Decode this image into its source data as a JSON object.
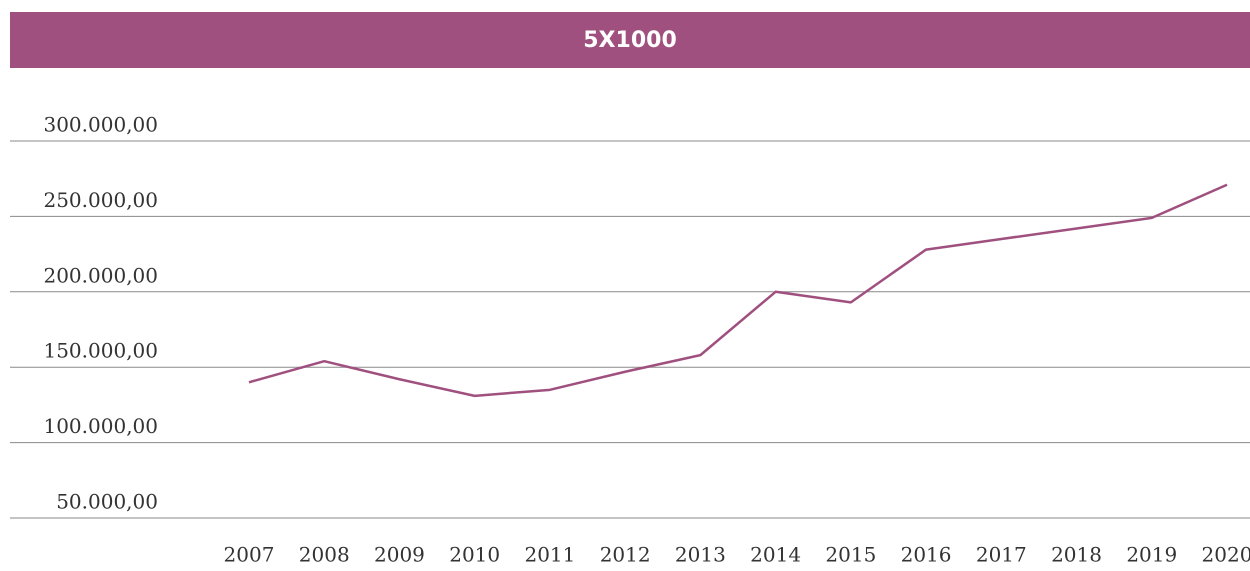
{
  "chart_data": {
    "type": "line",
    "title": "5X1000",
    "categories": [
      "2007",
      "2008",
      "2009",
      "2010",
      "2011",
      "2012",
      "2013",
      "2014",
      "2015",
      "2016",
      "2017",
      "2018",
      "2019",
      "2020"
    ],
    "series": [
      {
        "name": "5X1000",
        "color": "#a0507e",
        "values": [
          140000,
          154000,
          142000,
          131000,
          135000,
          147000,
          158000,
          200000,
          193000,
          228000,
          235000,
          242000,
          249000,
          271000
        ]
      }
    ],
    "ylim": [
      50000,
      300000
    ],
    "yticks": [
      {
        "value": 50000,
        "label": "50.000,00"
      },
      {
        "value": 100000,
        "label": "100.000,00"
      },
      {
        "value": 150000,
        "label": "150.000,00"
      },
      {
        "value": 200000,
        "label": "200.000,00"
      },
      {
        "value": 250000,
        "label": "250.000,00"
      },
      {
        "value": 300000,
        "label": "300.000,00"
      }
    ],
    "grid": true
  }
}
